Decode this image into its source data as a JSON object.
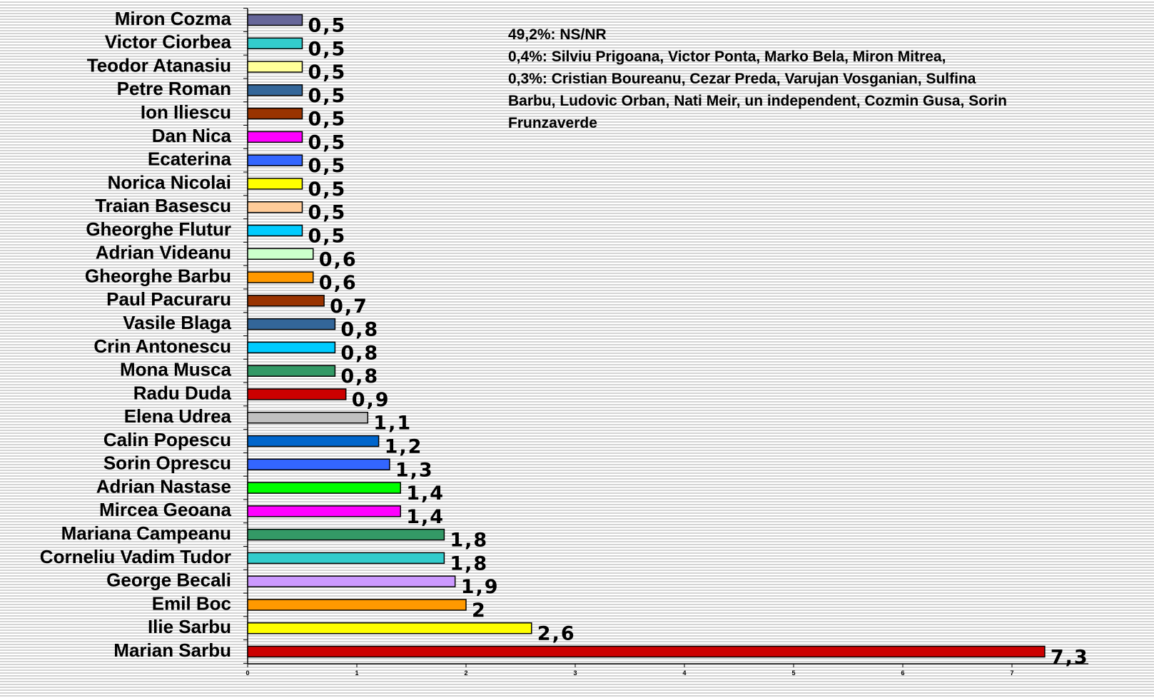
{
  "chart_data": {
    "type": "barh",
    "categories": [
      "Miron Cozma",
      "Victor Ciorbea",
      "Teodor Atanasiu",
      "Petre Roman",
      "Ion Iliescu",
      "Dan Nica",
      "Ecaterina",
      "Norica Nicolai",
      "Traian Basescu",
      "Gheorghe Flutur",
      "Adrian Videanu",
      "Gheorghe Barbu",
      "Paul Pacuraru",
      "Vasile Blaga",
      "Crin Antonescu",
      "Mona Musca",
      "Radu Duda",
      "Elena Udrea",
      "Calin Popescu",
      "Sorin Oprescu",
      "Adrian Nastase",
      "Mircea Geoana",
      "Mariana Campeanu",
      "Corneliu Vadim Tudor",
      "George Becali",
      "Emil Boc",
      "Ilie Sarbu",
      "Marian Sarbu"
    ],
    "values": [
      0.5,
      0.5,
      0.5,
      0.5,
      0.5,
      0.5,
      0.5,
      0.5,
      0.5,
      0.5,
      0.6,
      0.6,
      0.7,
      0.8,
      0.8,
      0.8,
      0.9,
      1.1,
      1.2,
      1.3,
      1.4,
      1.4,
      1.8,
      1.8,
      1.9,
      2,
      2.6,
      7.3
    ],
    "value_labels": [
      "0,5",
      "0,5",
      "0,5",
      "0,5",
      "0,5",
      "0,5",
      "0,5",
      "0,5",
      "0,5",
      "0,5",
      "0,6",
      "0,6",
      "0,7",
      "0,8",
      "0,8",
      "0,8",
      "0,9",
      "1,1",
      "1,2",
      "1,3",
      "1,4",
      "1,4",
      "1,8",
      "1,8",
      "1,9",
      "2",
      "2,6",
      "7,3"
    ],
    "colors": [
      "#666699",
      "#33cccc",
      "#ffff99",
      "#336699",
      "#993300",
      "#ff00ff",
      "#3366ff",
      "#ffff00",
      "#ffcc99",
      "#00ccff",
      "#ccffcc",
      "#ff9900",
      "#993300",
      "#336699",
      "#00ccff",
      "#339966",
      "#cc0000",
      "#c0c0c0",
      "#0066cc",
      "#3366ff",
      "#00ff00",
      "#ff00ff",
      "#339966",
      "#33cccc",
      "#cc99ff",
      "#ff9900",
      "#ffff00",
      "#cc0000"
    ],
    "xlim": [
      0,
      7.7
    ],
    "xticks": [
      0,
      1,
      2,
      3,
      4,
      5,
      6,
      7
    ],
    "annotation": [
      "49,2%: NS/NR",
      "0,4%: Silviu Prigoana, Victor Ponta, Marko Bela, Miron Mitrea,",
      "0,3%: Cristian Boureanu, Cezar Preda, Varujan Vosganian, Sulfina",
      "Barbu, Ludovic Orban, Nati Meir, un independent, Cozmin Gusa, Sorin",
      "Frunzaverde"
    ]
  }
}
